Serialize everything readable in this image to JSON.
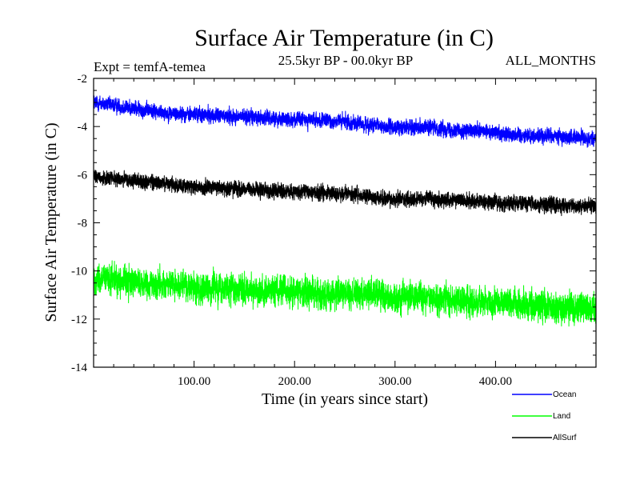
{
  "chart_data": {
    "type": "line",
    "title": "Surface Air Temperature (in C)",
    "subtitle": "25.5kyr BP - 00.0kyr BP",
    "expt_label": "Expt = temfA-temea",
    "months_label": "ALL_MONTHS",
    "xlabel": "Time (in years since start)",
    "ylabel": "Surface Air Temperature (in C)",
    "xlim": [
      0,
      500
    ],
    "ylim": [
      -14,
      -2
    ],
    "x_ticks": [
      100,
      200,
      300,
      400
    ],
    "x_tick_labels": [
      "100.00",
      "200.00",
      "300.00",
      "400.00"
    ],
    "y_ticks": [
      -14,
      -12,
      -10,
      -8,
      -6,
      -4,
      -2
    ],
    "y_tick_labels": [
      "-14",
      "-12",
      "-10",
      "-8",
      "-6",
      "-4",
      "-2"
    ],
    "series": [
      {
        "name": "Ocean",
        "color": "#0000ff",
        "x": [
          0,
          25,
          50,
          75,
          100,
          125,
          150,
          175,
          200,
          225,
          250,
          275,
          300,
          325,
          350,
          375,
          400,
          425,
          450,
          475,
          500
        ],
        "mean": [
          -3.0,
          -3.15,
          -3.3,
          -3.45,
          -3.5,
          -3.55,
          -3.6,
          -3.65,
          -3.7,
          -3.75,
          -3.8,
          -3.95,
          -4.05,
          -4.0,
          -4.1,
          -4.2,
          -4.25,
          -4.35,
          -4.4,
          -4.45,
          -4.5
        ],
        "noise_amplitude": 0.55,
        "samples_per_year": 12
      },
      {
        "name": "Land",
        "color": "#00ff00",
        "x": [
          0,
          25,
          50,
          75,
          100,
          125,
          150,
          175,
          200,
          225,
          250,
          275,
          300,
          325,
          350,
          375,
          400,
          425,
          450,
          475,
          500
        ],
        "mean": [
          -10.3,
          -10.4,
          -10.5,
          -10.6,
          -10.7,
          -10.75,
          -10.8,
          -10.8,
          -10.85,
          -10.9,
          -10.95,
          -11.0,
          -11.1,
          -11.1,
          -11.2,
          -11.25,
          -11.3,
          -11.4,
          -11.45,
          -11.5,
          -11.55
        ],
        "noise_amplitude": 1.1,
        "samples_per_year": 12
      },
      {
        "name": "AllSurf",
        "color": "#000000",
        "x": [
          0,
          25,
          50,
          75,
          100,
          125,
          150,
          175,
          200,
          225,
          250,
          275,
          300,
          325,
          350,
          375,
          400,
          425,
          450,
          475,
          500
        ],
        "mean": [
          -6.1,
          -6.2,
          -6.3,
          -6.4,
          -6.5,
          -6.55,
          -6.6,
          -6.65,
          -6.7,
          -6.75,
          -6.8,
          -6.9,
          -7.0,
          -7.0,
          -7.05,
          -7.1,
          -7.15,
          -7.2,
          -7.25,
          -7.3,
          -7.3
        ],
        "noise_amplitude": 0.55,
        "samples_per_year": 12
      }
    ],
    "legend": {
      "placement": "bottom-right",
      "entries": [
        {
          "label": "Ocean",
          "color": "#0000ff"
        },
        {
          "label": "Land",
          "color": "#00ff00"
        },
        {
          "label": "AllSurf",
          "color": "#000000"
        }
      ]
    }
  }
}
